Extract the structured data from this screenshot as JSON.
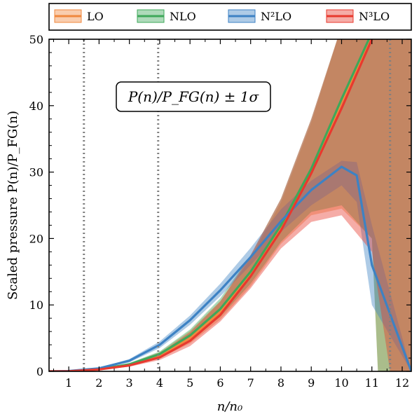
{
  "chart_data": {
    "type": "line",
    "xlabel": "n/n₀",
    "ylabel": "Scaled pressure P(n)/P_FG(n)",
    "annotation": "P(n)/P_FG(n) ± 1σ",
    "xlim": [
      0.35,
      12.3
    ],
    "ylim": [
      0,
      50
    ],
    "xticks": [
      1,
      2,
      3,
      4,
      5,
      6,
      7,
      8,
      9,
      10,
      11,
      12
    ],
    "yticks": [
      0,
      10,
      20,
      30,
      40,
      50
    ],
    "vlines": [
      1.5,
      3.95,
      11.6
    ],
    "legend_position": "top, outside",
    "series": [
      {
        "name": "LO",
        "color": "#f0883e",
        "x": [
          0.35,
          1,
          2,
          3,
          4,
          5,
          6,
          7,
          8,
          9,
          10,
          11,
          11.2,
          12.3
        ],
        "mid": [
          0,
          0.02,
          0.3,
          1.0,
          2.4,
          5.0,
          8.9,
          14.5,
          21.5,
          30.0,
          40.5,
          50.5,
          52,
          60
        ],
        "lower": [
          0,
          0.02,
          0.25,
          0.8,
          2.0,
          4.2,
          7.8,
          12.8,
          19.2,
          23.5,
          24.5,
          20,
          0,
          0
        ],
        "upper": [
          0,
          0.02,
          0.35,
          1.2,
          2.9,
          6.1,
          10.6,
          17.0,
          25.5,
          37.5,
          52,
          60,
          60,
          60
        ]
      },
      {
        "name": "NLO",
        "color": "#3ea85a",
        "x": [
          0.35,
          1,
          2,
          3,
          4,
          5,
          6,
          7,
          8,
          9,
          10,
          11,
          11.2,
          12.3
        ],
        "mid": [
          0,
          0.02,
          0.32,
          1.05,
          2.6,
          5.4,
          9.4,
          15.0,
          22.0,
          30.5,
          41.0,
          51.0,
          53,
          60
        ],
        "lower": [
          0,
          0.02,
          0.27,
          0.85,
          2.2,
          4.6,
          8.2,
          13.2,
          19.5,
          24,
          25,
          20,
          0,
          0
        ],
        "upper": [
          0,
          0.02,
          0.37,
          1.25,
          3.0,
          6.3,
          11.0,
          17.5,
          26.0,
          38,
          52,
          60,
          60,
          60
        ]
      },
      {
        "name": "N²LO",
        "color": "#3d82c4",
        "x": [
          0.35,
          1,
          2,
          3,
          4,
          5,
          6,
          7,
          8,
          9,
          10,
          10.5,
          11,
          12.3
        ],
        "mid": [
          0,
          0.05,
          0.45,
          1.6,
          4.0,
          7.7,
          12.2,
          17.2,
          22.6,
          27.3,
          30.8,
          29.5,
          16,
          0
        ],
        "lower": [
          0,
          0.04,
          0.38,
          1.35,
          3.5,
          7.0,
          11.3,
          16.0,
          21.0,
          25.0,
          28.0,
          25.5,
          10,
          0
        ],
        "upper": [
          0,
          0.06,
          0.52,
          1.85,
          4.5,
          8.4,
          13.2,
          18.6,
          24.4,
          28.7,
          31.7,
          31.5,
          22,
          0
        ]
      },
      {
        "name": "N³LO",
        "color": "#e8392e",
        "x": [
          0.35,
          1,
          2,
          3,
          4,
          5,
          6,
          7,
          8,
          9,
          10,
          11,
          11.6,
          12.3
        ],
        "mid": [
          0,
          0.02,
          0.28,
          0.9,
          2.1,
          4.6,
          8.5,
          14.3,
          21.2,
          29.8,
          39.6,
          50.0,
          56,
          60
        ],
        "lower": [
          0,
          0.02,
          0.22,
          0.7,
          1.7,
          3.8,
          7.5,
          12.5,
          18.5,
          22.5,
          23.5,
          18,
          0,
          0
        ],
        "upper": [
          0,
          0.02,
          0.34,
          1.1,
          2.7,
          5.9,
          10.5,
          17.5,
          26.0,
          38.0,
          52,
          60,
          60,
          60
        ]
      }
    ]
  }
}
